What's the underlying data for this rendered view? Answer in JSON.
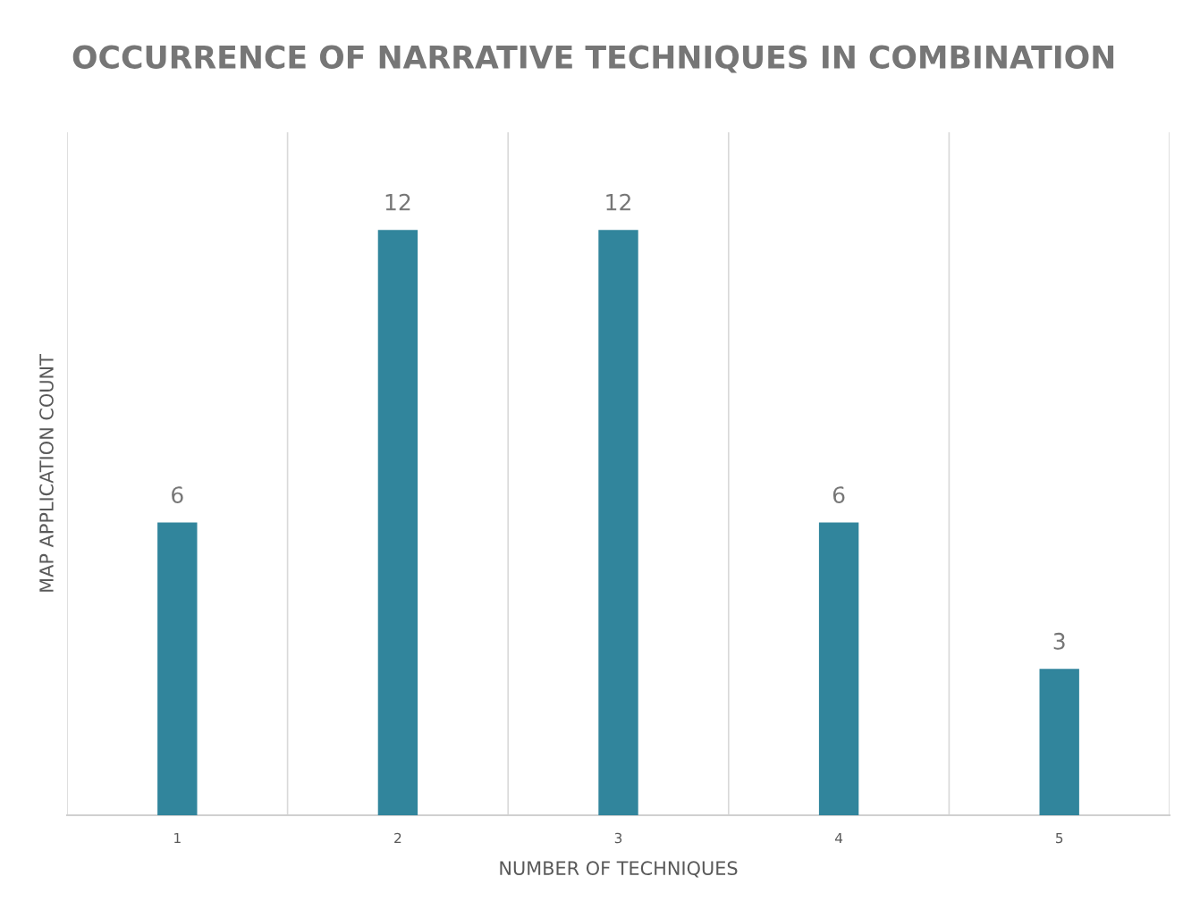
{
  "chart_data": {
    "type": "bar",
    "title": "OCCURRENCE OF NARRATIVE TECHNIQUES IN COMBINATION",
    "xlabel": "NUMBER OF TECHNIQUES",
    "ylabel": "MAP APPLICATION COUNT",
    "categories": [
      "1",
      "2",
      "3",
      "4",
      "5"
    ],
    "series": [
      {
        "color": "#31859c",
        "values": [
          6,
          12,
          12,
          6,
          3
        ]
      }
    ],
    "ylim": [
      0,
      14
    ],
    "tick_labels": "x",
    "data_labels": true,
    "grid": "x"
  }
}
